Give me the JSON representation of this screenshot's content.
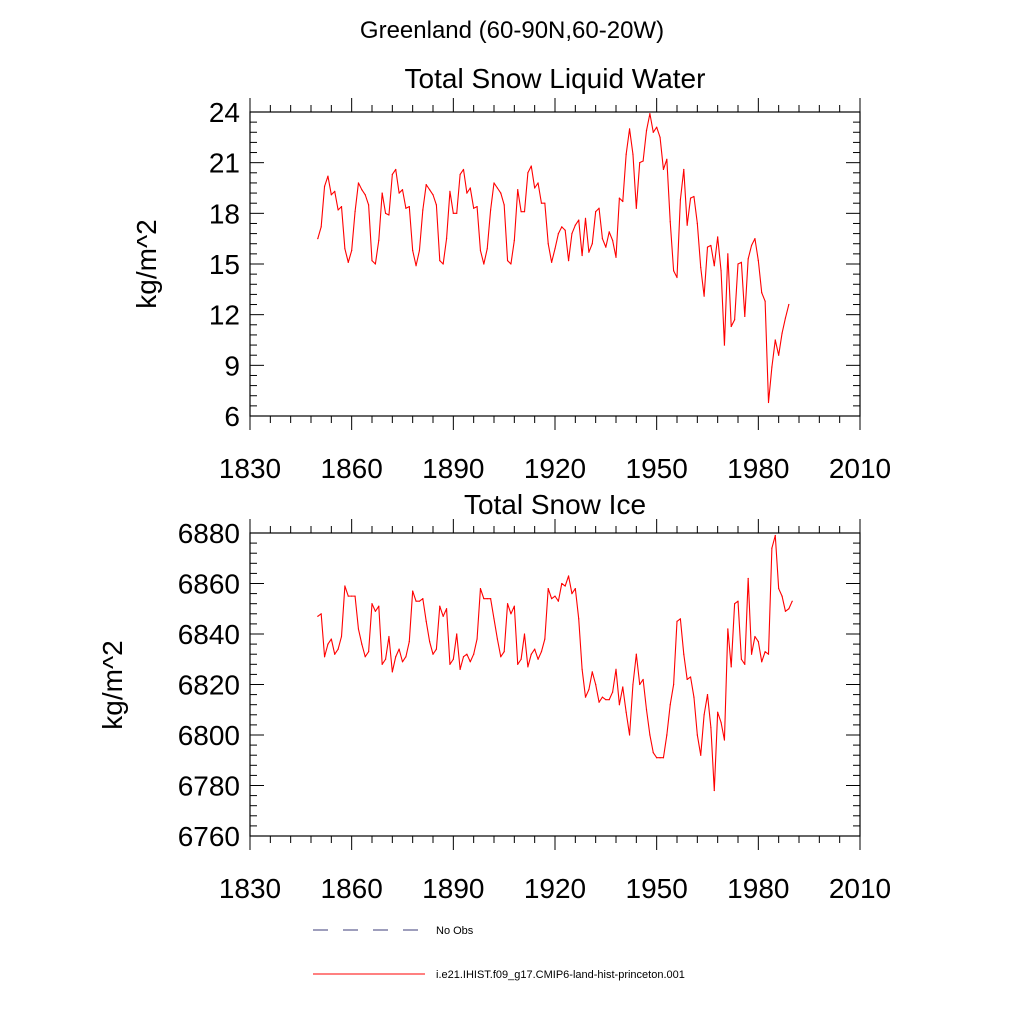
{
  "figure": {
    "suptitle": "Greenland (60-90N,60-20W)"
  },
  "legend": {
    "placement": "bottom-left",
    "entries": [
      {
        "label": "No Obs",
        "style": "dashed",
        "color": "#3d3d7a"
      },
      {
        "label": "i.e21.IHIST.f09_g17.CMIP6-land-hist-princeton.001",
        "style": "solid",
        "color": "#ff0000"
      }
    ]
  },
  "chart_data": [
    {
      "type": "line",
      "title": "Total Snow Liquid Water",
      "xlabel": "",
      "ylabel": "kg/m^2",
      "xlim": [
        1830,
        2010
      ],
      "ylim": [
        6,
        24
      ],
      "xticks": [
        1830,
        1860,
        1890,
        1920,
        1950,
        1980,
        2010
      ],
      "yticks": [
        6,
        9,
        12,
        15,
        18,
        21,
        24
      ],
      "grid": false,
      "series": [
        {
          "name": "i.e21.IHIST.f09_g17.CMIP6-land-hist-princeton.001",
          "color": "#ff0000",
          "x_start": 1850,
          "x_step": 1,
          "values": [
            16.5,
            17.2,
            19.6,
            20.2,
            19.1,
            19.3,
            18.2,
            18.4,
            15.9,
            15.1,
            15.8,
            18.1,
            19.8,
            19.4,
            19.1,
            18.5,
            15.2,
            15.0,
            16.4,
            19.2,
            18.0,
            17.9,
            20.3,
            20.6,
            19.2,
            19.4,
            18.3,
            18.4,
            15.8,
            14.9,
            15.8,
            18.2,
            19.7,
            19.4,
            19.1,
            18.5,
            15.2,
            15.0,
            16.5,
            19.3,
            18.0,
            18.0,
            20.3,
            20.6,
            19.2,
            19.5,
            18.3,
            18.4,
            15.8,
            15.0,
            15.9,
            18.2,
            19.8,
            19.5,
            19.2,
            18.5,
            15.2,
            15.0,
            16.4,
            19.4,
            18.1,
            18.1,
            20.4,
            20.8,
            19.5,
            19.8,
            18.6,
            18.6,
            16.2,
            15.1,
            15.9,
            16.8,
            17.2,
            17.0,
            15.2,
            16.8,
            17.3,
            17.6,
            15.5,
            17.7,
            15.7,
            16.2,
            18.1,
            18.3,
            16.5,
            16.0,
            16.9,
            16.4,
            15.4,
            18.9,
            18.7,
            21.5,
            23.0,
            21.5,
            18.3,
            21.0,
            21.1,
            22.9,
            23.9,
            22.8,
            23.1,
            22.5,
            20.6,
            21.2,
            17.5,
            14.6,
            14.2,
            18.8,
            20.6,
            17.3,
            18.9,
            19.0,
            17.4,
            14.8,
            13.1,
            16.0,
            16.1,
            14.9,
            16.6,
            14.6,
            10.2,
            15.6,
            11.3,
            11.7,
            15.0,
            15.1,
            11.9,
            15.3,
            16.1,
            16.5,
            15.2,
            13.3,
            12.8,
            6.8,
            8.9,
            10.5,
            9.6,
            10.9,
            11.8,
            12.6
          ]
        }
      ]
    },
    {
      "type": "line",
      "title": "Total Snow Ice",
      "xlabel": "",
      "ylabel": "kg/m^2",
      "xlim": [
        1830,
        2010
      ],
      "ylim": [
        6760,
        6880
      ],
      "xticks": [
        1830,
        1860,
        1890,
        1920,
        1950,
        1980,
        2010
      ],
      "yticks": [
        6760,
        6780,
        6800,
        6820,
        6840,
        6860,
        6880
      ],
      "grid": false,
      "series": [
        {
          "name": "i.e21.IHIST.f09_g17.CMIP6-land-hist-princeton.001",
          "color": "#ff0000",
          "x_start": 1850,
          "x_step": 1,
          "values": [
            6847,
            6848,
            6831,
            6836,
            6838,
            6832,
            6834,
            6839,
            6859,
            6855,
            6855,
            6855,
            6842,
            6836,
            6831,
            6833,
            6852,
            6849,
            6851,
            6828,
            6830,
            6839,
            6825,
            6831,
            6834,
            6829,
            6831,
            6837,
            6857,
            6853,
            6853,
            6854,
            6845,
            6837,
            6832,
            6834,
            6851,
            6847,
            6850,
            6828,
            6830,
            6840,
            6826,
            6831,
            6832,
            6829,
            6832,
            6838,
            6858,
            6854,
            6854,
            6854,
            6846,
            6838,
            6831,
            6833,
            6852,
            6848,
            6851,
            6828,
            6830,
            6840,
            6827,
            6832,
            6834,
            6830,
            6833,
            6838,
            6858,
            6854,
            6855,
            6853,
            6860,
            6859,
            6863,
            6856,
            6858,
            6846,
            6826,
            6815,
            6818,
            6825,
            6820,
            6813,
            6815,
            6814,
            6814,
            6817,
            6826,
            6812,
            6819,
            6809,
            6800,
            6820,
            6832,
            6820,
            6822,
            6810,
            6800,
            6793,
            6791,
            6791,
            6791,
            6800,
            6812,
            6820,
            6845,
            6846,
            6832,
            6822,
            6823,
            6815,
            6800,
            6792,
            6808,
            6816,
            6803,
            6778,
            6809,
            6805,
            6798,
            6842,
            6827,
            6852,
            6853,
            6830,
            6828,
            6862,
            6832,
            6839,
            6837,
            6829,
            6833,
            6832,
            6874,
            6879,
            6858,
            6855,
            6849,
            6850,
            6853
          ]
        }
      ]
    }
  ]
}
